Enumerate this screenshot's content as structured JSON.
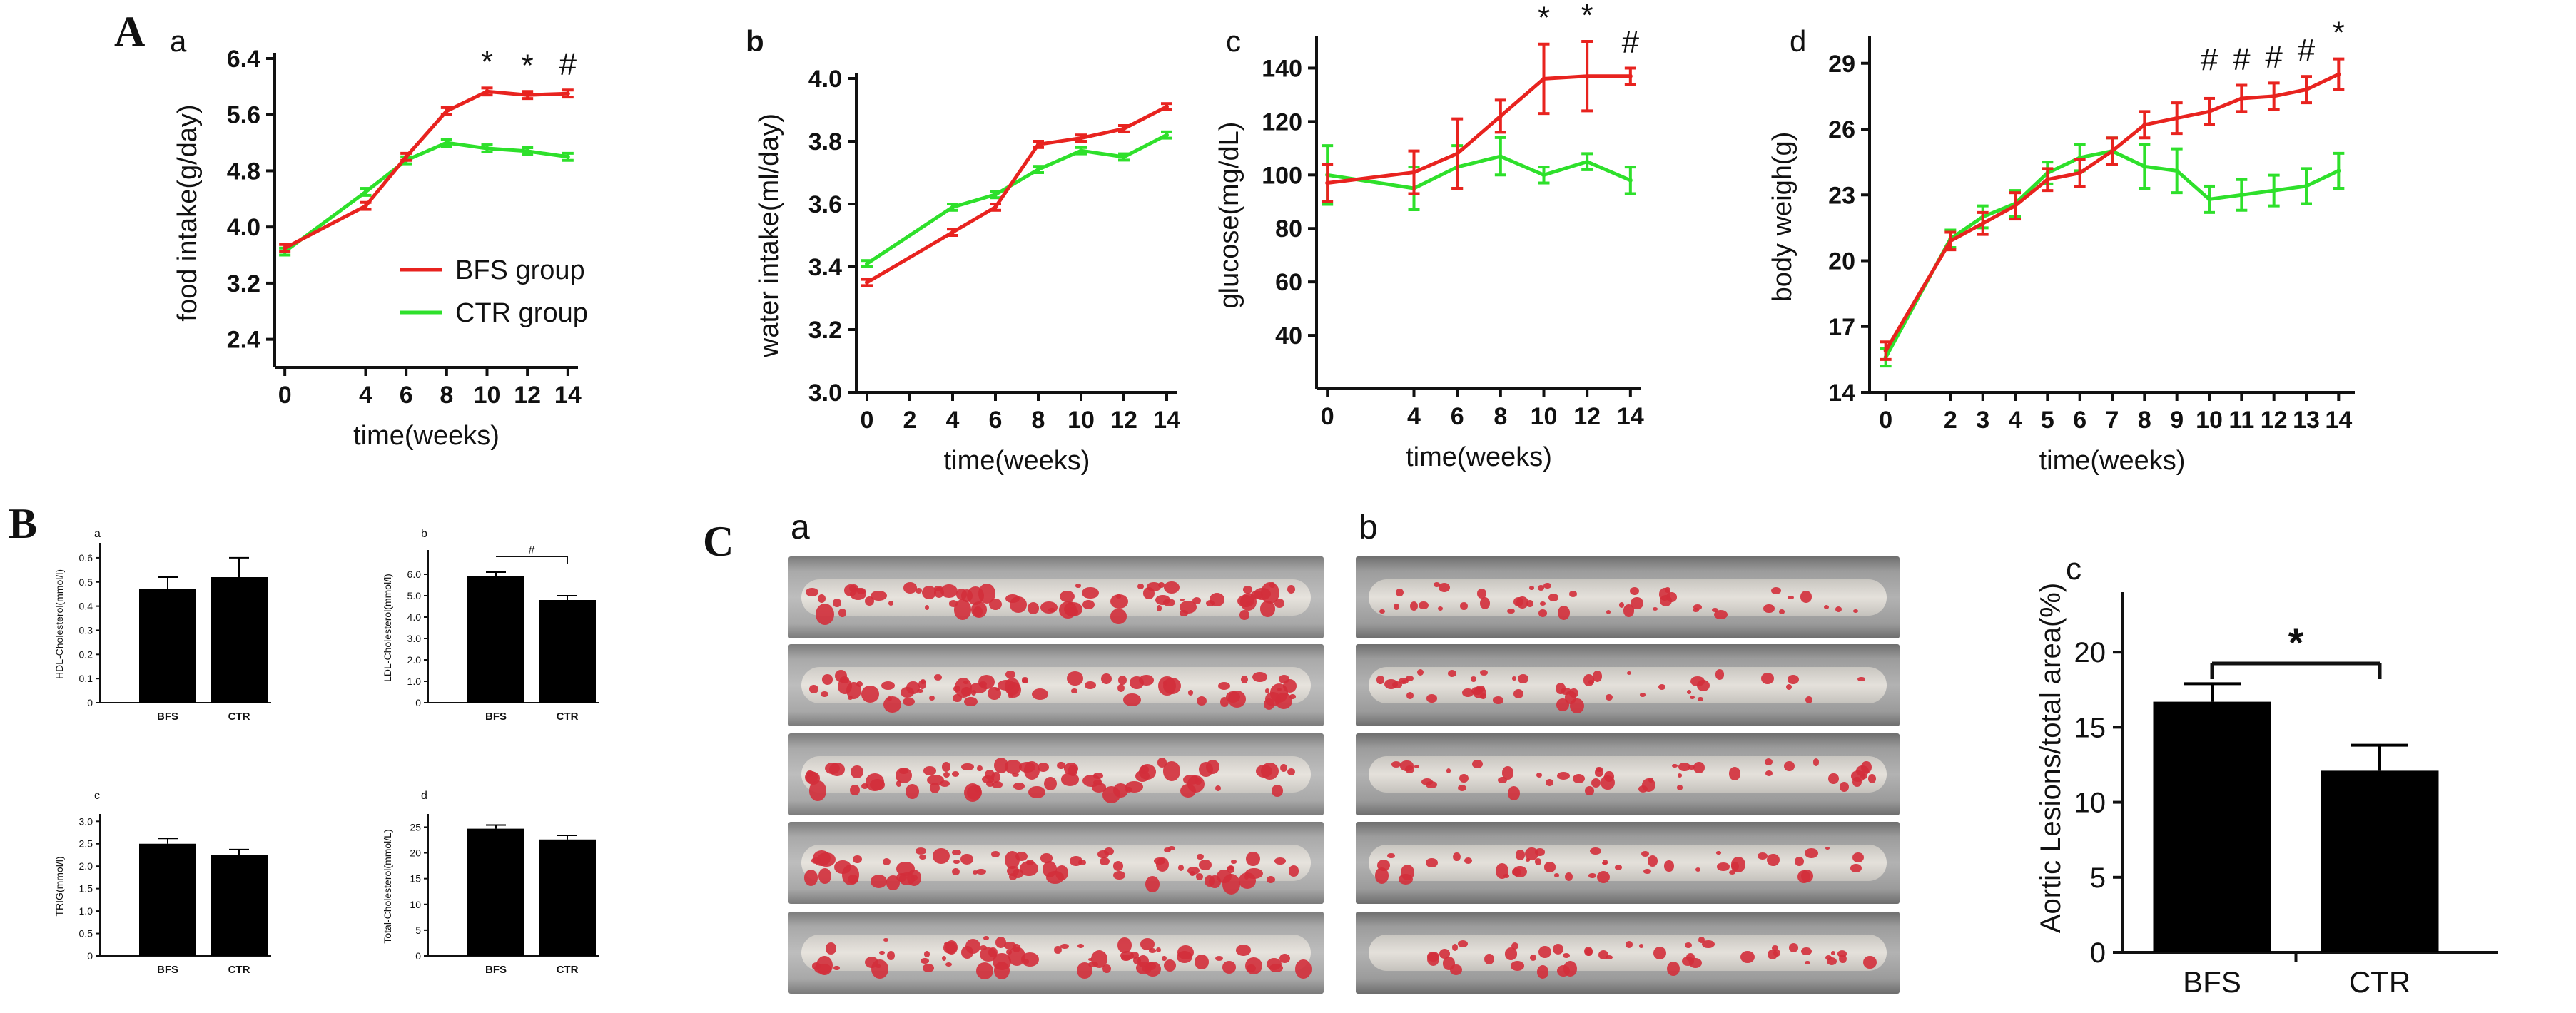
{
  "figure": {
    "A": {
      "label": "A",
      "charts": [
        {
          "id": "a",
          "panel": "a",
          "type": "line",
          "xlabel": "time(weeks)",
          "ylabel": "food intake(g/day)",
          "x": [
            0,
            4,
            6,
            8,
            10,
            12,
            14
          ],
          "xticks": [
            0,
            4,
            6,
            8,
            10,
            12,
            14
          ],
          "yticks": [
            2.4,
            3.2,
            4.0,
            4.8,
            5.6,
            6.4
          ],
          "yticklabels": [
            "2.4",
            "3.2",
            "4.0",
            "4.8",
            "5.6",
            "6.4"
          ],
          "ylim": [
            2.0,
            6.4
          ],
          "series": [
            {
              "name": "BFS group",
              "color": "#e8231f",
              "values": [
                3.7,
                4.3,
                5.0,
                5.65,
                5.93,
                5.88,
                5.9
              ],
              "err": [
                0.05,
                0.05,
                0.05,
                0.05,
                0.05,
                0.05,
                0.05
              ]
            },
            {
              "name": "CTR group",
              "color": "#2ee02b",
              "values": [
                3.65,
                4.5,
                4.95,
                5.2,
                5.12,
                5.08,
                5.0
              ],
              "err": [
                0.05,
                0.05,
                0.05,
                0.05,
                0.05,
                0.05,
                0.05
              ]
            }
          ],
          "annotations": [
            {
              "x": 10,
              "text": "*"
            },
            {
              "x": 12,
              "text": "*"
            },
            {
              "x": 14,
              "text": "#"
            }
          ],
          "legend": [
            "BFS group",
            "CTR group"
          ]
        },
        {
          "id": "b",
          "panel": "b",
          "type": "line",
          "xlabel": "time(weeks)",
          "ylabel": "water intake(ml/day)",
          "x": [
            0,
            4,
            6,
            8,
            10,
            12,
            14
          ],
          "xticks": [
            0,
            2,
            4,
            6,
            8,
            10,
            12,
            14
          ],
          "yticks": [
            3.0,
            3.2,
            3.4,
            3.6,
            3.8,
            4.0
          ],
          "yticklabels": [
            "3.0",
            "3.2",
            "3.4",
            "3.6",
            "3.8",
            "4.0"
          ],
          "ylim": [
            3.0,
            4.0
          ],
          "series": [
            {
              "name": "BFS group",
              "color": "#e8231f",
              "values": [
                3.35,
                3.51,
                3.59,
                3.79,
                3.81,
                3.84,
                3.91
              ],
              "err": [
                0.01,
                0.01,
                0.01,
                0.01,
                0.01,
                0.01,
                0.01
              ]
            },
            {
              "name": "CTR group",
              "color": "#2ee02b",
              "values": [
                3.41,
                3.59,
                3.63,
                3.71,
                3.77,
                3.75,
                3.82
              ],
              "err": [
                0.01,
                0.01,
                0.01,
                0.01,
                0.01,
                0.01,
                0.01
              ]
            }
          ],
          "annotations": []
        },
        {
          "id": "c",
          "panel": "c",
          "type": "line",
          "xlabel": "time(weeks)",
          "ylabel": "glucose(mg/dL)",
          "x": [
            0,
            4,
            6,
            8,
            10,
            12,
            14
          ],
          "xticks": [
            0,
            4,
            6,
            8,
            10,
            12,
            14
          ],
          "yticks": [
            40,
            60,
            80,
            100,
            120,
            140
          ],
          "yticklabels": [
            "40",
            "60",
            "80",
            "100",
            "120",
            "140"
          ],
          "ylim": [
            20,
            150
          ],
          "series": [
            {
              "name": "BFS group",
              "color": "#e8231f",
              "values": [
                97,
                101,
                108,
                122,
                136,
                137,
                137
              ],
              "err": [
                7,
                8,
                13,
                6,
                13,
                13,
                3
              ]
            },
            {
              "name": "CTR group",
              "color": "#2ee02b",
              "values": [
                100,
                95,
                103,
                107,
                100,
                105,
                98
              ],
              "err": [
                11,
                8,
                8,
                7,
                3,
                3,
                5
              ]
            }
          ],
          "annotations": [
            {
              "x": 10,
              "text": "*"
            },
            {
              "x": 12,
              "text": "*"
            },
            {
              "x": 14,
              "text": "#"
            }
          ]
        },
        {
          "id": "d",
          "panel": "d",
          "type": "line",
          "xlabel": "time(weeks)",
          "ylabel": "body weigh(g)",
          "x": [
            0,
            2,
            3,
            4,
            5,
            6,
            7,
            8,
            9,
            10,
            11,
            12,
            13,
            14
          ],
          "xticks": [
            0,
            2,
            3,
            4,
            5,
            6,
            7,
            8,
            9,
            10,
            11,
            12,
            13,
            14
          ],
          "yticks": [
            14,
            17,
            20,
            23,
            26,
            29
          ],
          "yticklabels": [
            "14",
            "17",
            "20",
            "23",
            "26",
            "29"
          ],
          "ylim": [
            14,
            30
          ],
          "series": [
            {
              "name": "BFS group",
              "color": "#e8231f",
              "values": [
                15.9,
                20.9,
                21.7,
                22.5,
                23.7,
                24.0,
                25.0,
                26.2,
                26.5,
                26.8,
                27.4,
                27.5,
                27.8,
                28.5
              ],
              "err": [
                0.4,
                0.4,
                0.5,
                0.6,
                0.5,
                0.6,
                0.6,
                0.6,
                0.7,
                0.6,
                0.6,
                0.6,
                0.6,
                0.7
              ]
            },
            {
              "name": "CTR group",
              "color": "#2ee02b",
              "values": [
                15.6,
                21.0,
                22.0,
                22.6,
                24.0,
                24.7,
                25.0,
                24.3,
                24.1,
                22.8,
                23.0,
                23.2,
                23.4,
                24.1
              ],
              "err": [
                0.4,
                0.4,
                0.5,
                0.6,
                0.5,
                0.6,
                0.6,
                1.0,
                1.0,
                0.6,
                0.7,
                0.7,
                0.8,
                0.8
              ]
            }
          ],
          "annotations": [
            {
              "x": 10,
              "text": "#"
            },
            {
              "x": 11,
              "text": "#"
            },
            {
              "x": 12,
              "text": "#"
            },
            {
              "x": 13,
              "text": "#"
            },
            {
              "x": 14,
              "text": "*"
            }
          ]
        }
      ]
    },
    "B": {
      "label": "B",
      "charts": [
        {
          "id": "a",
          "panel": "a",
          "type": "bar",
          "ylabel": "HDL-Cholesterol(mmol/l)",
          "categories": [
            "BFS",
            "CTR"
          ],
          "values": [
            0.47,
            0.52
          ],
          "err": [
            0.05,
            0.08
          ],
          "yticks": [
            0,
            0.1,
            0.2,
            0.3,
            0.4,
            0.5,
            0.6
          ],
          "yticklabels": [
            "0",
            "0.1",
            "0.2",
            "0.3",
            "0.4",
            "0.5",
            "0.6"
          ],
          "ylim": [
            0,
            0.65
          ],
          "sig": ""
        },
        {
          "id": "b",
          "panel": "b",
          "type": "bar",
          "ylabel": "LDL-Cholesterol(mmol/l)",
          "categories": [
            "BFS",
            "CTR"
          ],
          "values": [
            5.9,
            4.8
          ],
          "err": [
            0.2,
            0.2
          ],
          "yticks": [
            0,
            1,
            2,
            3,
            4,
            5,
            6
          ],
          "yticklabels": [
            "0",
            "1.0",
            "2.0",
            "3.0",
            "4.0",
            "5.0",
            "6.0"
          ],
          "ylim": [
            0,
            7
          ],
          "sig": "#"
        },
        {
          "id": "c",
          "panel": "c",
          "type": "bar",
          "ylabel": "TRIG(mmol/l)",
          "categories": [
            "BFS",
            "CTR"
          ],
          "values": [
            2.5,
            2.25
          ],
          "err": [
            0.12,
            0.12
          ],
          "yticks": [
            0,
            0.5,
            1.0,
            1.5,
            2.0,
            2.5,
            3.0
          ],
          "yticklabels": [
            "0",
            "0.5",
            "1.0",
            "1.5",
            "2.0",
            "2.5",
            "3.0"
          ],
          "ylim": [
            0,
            3.1
          ],
          "sig": ""
        },
        {
          "id": "d",
          "panel": "d",
          "type": "bar",
          "ylabel": "Total-Cholesterol(mmol/L)",
          "categories": [
            "BFS",
            "CTR"
          ],
          "values": [
            24.7,
            22.6
          ],
          "err": [
            0.7,
            0.8
          ],
          "yticks": [
            0,
            5,
            10,
            15,
            20,
            25
          ],
          "yticklabels": [
            "0",
            "5",
            "10",
            "15",
            "20",
            "25"
          ],
          "ylim": [
            0,
            27
          ],
          "sig": ""
        }
      ]
    },
    "C": {
      "label": "C",
      "group_a_label": "a",
      "group_b_label": "b",
      "chart": {
        "id": "c",
        "panel": "c",
        "type": "bar",
        "ylabel": "Aortic Lesions/total area(%)",
        "categories": [
          "BFS",
          "CTR"
        ],
        "values": [
          16.7,
          12.1
        ],
        "err": [
          1.2,
          1.7
        ],
        "yticks": [
          0,
          5,
          10,
          15,
          20
        ],
        "yticklabels": [
          "0",
          "5",
          "10",
          "15",
          "20"
        ],
        "ylim": [
          0,
          24
        ],
        "sig": "*"
      }
    }
  },
  "colors": {
    "bfs": "#e8231f",
    "ctr": "#2ee02b",
    "axis": "#111111",
    "bar": "#000000"
  }
}
